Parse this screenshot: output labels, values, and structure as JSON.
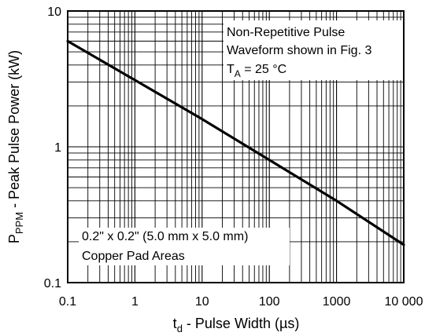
{
  "chart_data": {
    "type": "line",
    "x_scale": "log",
    "y_scale": "log",
    "xlim": [
      0.1,
      10000
    ],
    "ylim": [
      0.1,
      10
    ],
    "x_ticks": [
      "0.1",
      "1",
      "10",
      "100",
      "1000",
      "10 000"
    ],
    "y_ticks": [
      "0.1",
      "1",
      "10"
    ],
    "xlabel": {
      "main": "t",
      "sub": "d",
      "rest": " - Pulse Width (µs)"
    },
    "ylabel": {
      "main": "P",
      "sub": "PPM",
      "rest": " - Peak Pulse Power (kW)"
    },
    "grid": true,
    "series": [
      {
        "x": [
          0.1,
          1,
          10,
          100,
          1000,
          10000
        ],
        "y": [
          6.0,
          3.1,
          1.6,
          0.8,
          0.4,
          0.19
        ]
      }
    ],
    "annotations": {
      "conditions": {
        "line1": "Non-Repetitive Pulse",
        "line2": "Waveform shown in Fig. 3",
        "line3_main": "T",
        "line3_sub": "A",
        "line3_rest": " = 25 °C"
      },
      "pad": {
        "line1": "0.2\" x 0.2\" (5.0 mm x 5.0 mm)",
        "line2": "Copper Pad Areas"
      }
    },
    "colors": {
      "line": "#000000",
      "grid": "#000000",
      "background": "#ffffff"
    }
  }
}
